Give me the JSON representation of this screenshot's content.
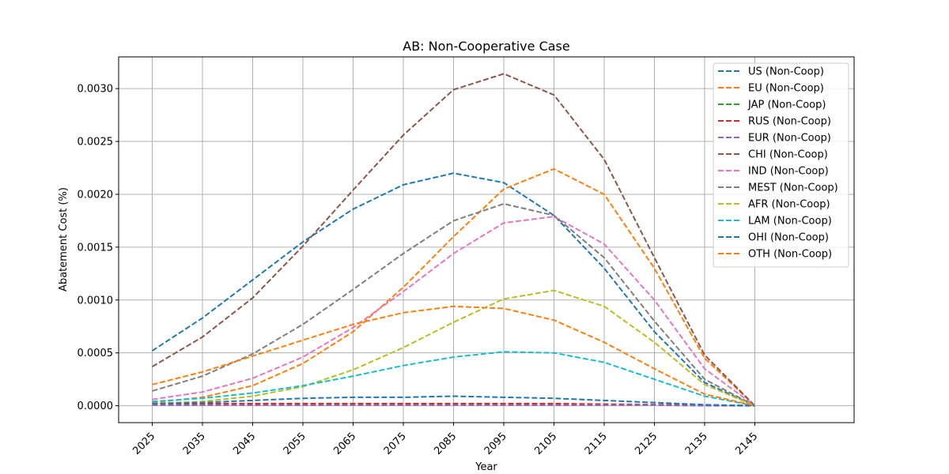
{
  "chart_data": {
    "type": "line",
    "title": "AB: Non-Cooperative Case",
    "xlabel": "Year",
    "ylabel": "Abatement Cost (%)",
    "x": [
      2025,
      2035,
      2045,
      2055,
      2065,
      2075,
      2085,
      2095,
      2105,
      2115,
      2125,
      2135,
      2145
    ],
    "x_tick_labels": [
      "2025",
      "2035",
      "2045",
      "2055",
      "2065",
      "2075",
      "2085",
      "2095",
      "2105",
      "2115",
      "2125",
      "2135",
      "2145"
    ],
    "y_ticks": [
      0.0,
      0.0005,
      0.001,
      0.0015,
      0.002,
      0.0025,
      0.003
    ],
    "y_tick_labels": [
      "0.0000",
      "0.0005",
      "0.0010",
      "0.0015",
      "0.0020",
      "0.0025",
      "0.0030"
    ],
    "ylim": [
      -0.00016,
      0.0033
    ],
    "grid": true,
    "legend_position": "top-right",
    "series": [
      {
        "name": "US (Non-Coop)",
        "color": "#1f77b4",
        "values": [
          0.00052,
          0.00083,
          0.00119,
          0.00155,
          0.00186,
          0.00209,
          0.0022,
          0.00211,
          0.0018,
          0.0013,
          0.0007,
          0.00022,
          0.0
        ]
      },
      {
        "name": "EU (Non-Coop)",
        "color": "#ff7f0e",
        "values": [
          3e-05,
          8e-05,
          0.00019,
          0.0004,
          0.0007,
          0.00112,
          0.0016,
          0.00205,
          0.00224,
          0.002,
          0.0013,
          0.00045,
          0.0
        ]
      },
      {
        "name": "JAP (Non-Coop)",
        "color": "#2ca02c",
        "values": [
          1e-05,
          1e-05,
          1e-05,
          1e-05,
          1e-05,
          1e-05,
          1e-05,
          1e-05,
          1e-05,
          1e-05,
          1e-05,
          5e-06,
          0.0
        ]
      },
      {
        "name": "RUS (Non-Coop)",
        "color": "#d62728",
        "values": [
          1.5e-05,
          2e-05,
          2e-05,
          2e-05,
          2e-05,
          2e-05,
          2e-05,
          2e-05,
          2e-05,
          1.5e-05,
          1e-05,
          5e-06,
          0.0
        ]
      },
      {
        "name": "EUR (Non-Coop)",
        "color": "#9467bd",
        "values": [
          5e-06,
          5e-06,
          5e-06,
          5e-06,
          5e-06,
          5e-06,
          5e-06,
          5e-06,
          5e-06,
          5e-06,
          5e-06,
          0.0,
          0.0
        ]
      },
      {
        "name": "CHI (Non-Coop)",
        "color": "#8c564b",
        "values": [
          0.00037,
          0.00065,
          0.00102,
          0.00151,
          0.00204,
          0.00256,
          0.00299,
          0.00314,
          0.00294,
          0.00233,
          0.0014,
          0.00048,
          0.0
        ]
      },
      {
        "name": "IND (Non-Coop)",
        "color": "#e377c2",
        "values": [
          6e-05,
          0.00013,
          0.00026,
          0.00046,
          0.00074,
          0.00108,
          0.00144,
          0.00173,
          0.00179,
          0.00153,
          0.001,
          0.00035,
          0.0
        ]
      },
      {
        "name": "MEST (Non-Coop)",
        "color": "#7f7f7f",
        "values": [
          0.00014,
          0.00028,
          0.00049,
          0.00077,
          0.0011,
          0.00144,
          0.00175,
          0.00191,
          0.0018,
          0.0014,
          0.0008,
          0.00025,
          0.0
        ]
      },
      {
        "name": "AFR (Non-Coop)",
        "color": "#bcbd22",
        "values": [
          2e-05,
          4e-05,
          9e-05,
          0.00018,
          0.00034,
          0.00055,
          0.00079,
          0.00101,
          0.00109,
          0.00094,
          0.0006,
          0.0002,
          0.0
        ]
      },
      {
        "name": "LAM (Non-Coop)",
        "color": "#17becf",
        "values": [
          4e-05,
          7e-05,
          0.00012,
          0.00019,
          0.00028,
          0.00038,
          0.00046,
          0.00051,
          0.0005,
          0.00041,
          0.00025,
          9e-05,
          0.0
        ]
      },
      {
        "name": "OHI (Non-Coop)",
        "color": "#1f77b4",
        "values": [
          2e-05,
          3e-05,
          5e-05,
          7e-05,
          8e-05,
          8e-05,
          9e-05,
          8e-05,
          7e-05,
          5e-05,
          3e-05,
          1e-05,
          0.0
        ]
      },
      {
        "name": "OTH (Non-Coop)",
        "color": "#ff7f0e",
        "values": [
          0.0002,
          0.00032,
          0.00047,
          0.00062,
          0.00077,
          0.00088,
          0.00094,
          0.00092,
          0.00081,
          0.0006,
          0.00035,
          0.00011,
          0.0
        ]
      }
    ]
  }
}
